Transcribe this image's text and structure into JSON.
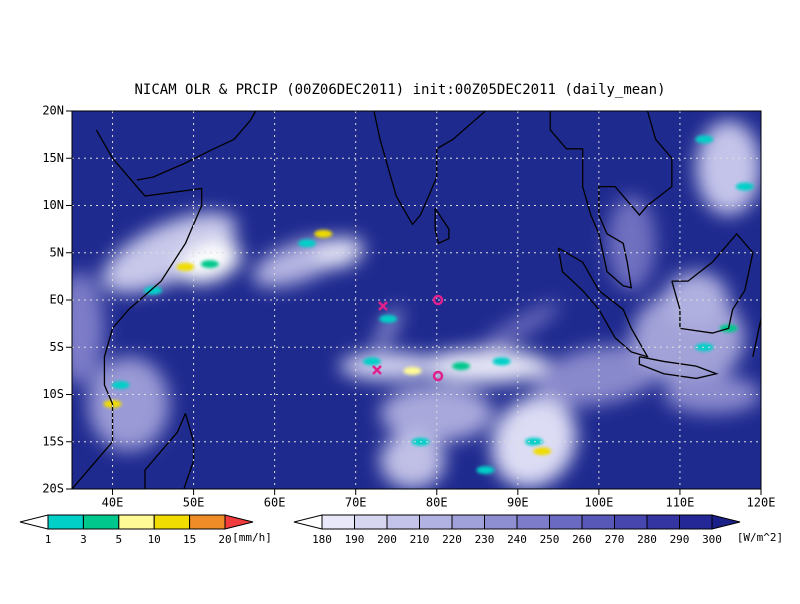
{
  "title": "NICAM OLR & PRCIP (00Z06DEC2011) init:00Z05DEC2011 (daily_mean)",
  "map": {
    "lat_labels": [
      "20N",
      "15N",
      "10N",
      "5N",
      "EQ",
      "5S",
      "10S",
      "15S",
      "20S"
    ],
    "lon_labels": [
      "40E",
      "50E",
      "60E",
      "70E",
      "80E",
      "90E",
      "100E",
      "110E",
      "120E"
    ]
  },
  "precip_colorbar": {
    "labels": [
      "1",
      "3",
      "5",
      "10",
      "15",
      "20"
    ],
    "unit": "[mm/h]"
  },
  "olr_colorbar": {
    "labels": [
      "180",
      "190",
      "200",
      "210",
      "220",
      "230",
      "240",
      "250",
      "260",
      "270",
      "280",
      "290",
      "300"
    ],
    "unit": "[W/m^2]"
  }
}
